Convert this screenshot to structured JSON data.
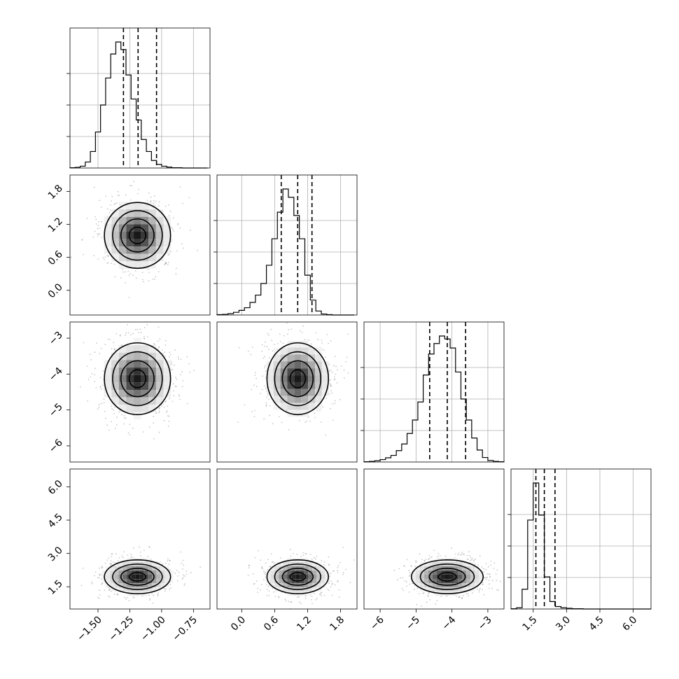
{
  "chart_data": {
    "type": "corner",
    "parameters": 4,
    "grid": true,
    "colors": {
      "line": "#000000",
      "grid": "#b0b0b0",
      "points": "#9a9a9a"
    },
    "quantiles": [
      0.16,
      0.5,
      0.84
    ],
    "axes": [
      {
        "range": [
          -1.72,
          -0.62
        ],
        "ticks": [
          -1.5,
          -1.25,
          -1.0,
          -0.75
        ],
        "tick_labels": [
          "−1.50",
          "−1.25",
          "−1.00",
          "−0.75"
        ]
      },
      {
        "range": [
          -0.45,
          2.1
        ],
        "ticks": [
          0.0,
          0.6,
          1.2,
          1.8
        ],
        "tick_labels": [
          "0.0",
          "0.6",
          "1.2",
          "1.8"
        ]
      },
      {
        "range": [
          -6.45,
          -2.55
        ],
        "ticks": [
          -6,
          -5,
          -4,
          -3
        ],
        "tick_labels": [
          "−6",
          "−5",
          "−4",
          "−3"
        ]
      },
      {
        "range": [
          0.5,
          6.8
        ],
        "ticks": [
          1.5,
          3.0,
          4.5,
          6.0
        ],
        "tick_labels": [
          "1.5",
          "3.0",
          "4.5",
          "6.0"
        ]
      }
    ],
    "marginals": [
      {
        "param": 0,
        "quantile_values": [
          -1.3,
          -1.185,
          -1.04
        ],
        "bins_x": [
          -1.72,
          -1.68,
          -1.64,
          -1.6,
          -1.56,
          -1.52,
          -1.48,
          -1.44,
          -1.4,
          -1.36,
          -1.32,
          -1.28,
          -1.24,
          -1.2,
          -1.16,
          -1.12,
          -1.08,
          -1.04,
          -1.0,
          -0.96,
          -0.92,
          -0.88,
          -0.84,
          -0.8,
          -0.76,
          -0.72,
          -0.68,
          -0.64
        ],
        "counts": [
          1,
          2,
          6,
          20,
          55,
          120,
          210,
          300,
          380,
          420,
          395,
          310,
          230,
          160,
          95,
          55,
          25,
          12,
          6,
          3,
          1,
          1,
          0,
          0,
          0,
          0,
          0
        ]
      },
      {
        "param": 1,
        "quantile_values": [
          0.72,
          1.02,
          1.28
        ],
        "bins_x": [
          -0.45,
          -0.35,
          -0.25,
          -0.15,
          -0.05,
          0.05,
          0.15,
          0.25,
          0.35,
          0.45,
          0.55,
          0.65,
          0.75,
          0.85,
          0.95,
          1.05,
          1.15,
          1.25,
          1.35,
          1.45,
          1.55,
          1.65,
          1.75,
          1.85,
          1.95,
          2.05
        ],
        "counts": [
          1,
          2,
          4,
          8,
          14,
          22,
          38,
          60,
          95,
          150,
          230,
          310,
          380,
          355,
          300,
          230,
          120,
          45,
          12,
          3,
          1,
          0,
          0,
          0,
          0
        ]
      },
      {
        "param": 2,
        "quantile_values": [
          -4.62,
          -4.13,
          -3.62
        ],
        "bins_x": [
          -6.45,
          -6.3,
          -6.15,
          -6.0,
          -5.85,
          -5.7,
          -5.55,
          -5.4,
          -5.25,
          -5.1,
          -4.95,
          -4.8,
          -4.65,
          -4.5,
          -4.35,
          -4.2,
          -4.05,
          -3.9,
          -3.75,
          -3.6,
          -3.45,
          -3.3,
          -3.15,
          -3.0,
          -2.85,
          -2.7,
          -2.55
        ],
        "counts": [
          1,
          2,
          4,
          8,
          14,
          22,
          38,
          60,
          95,
          140,
          200,
          290,
          360,
          395,
          420,
          410,
          380,
          300,
          210,
          140,
          80,
          40,
          15,
          5,
          2,
          1
        ]
      },
      {
        "param": 3,
        "quantile_values": [
          1.62,
          2.0,
          2.48
        ],
        "bins_x": [
          0.5,
          0.75,
          1.0,
          1.25,
          1.5,
          1.75,
          2.0,
          2.25,
          2.5,
          2.75,
          3.0,
          3.25,
          3.5,
          3.75,
          4.0,
          4.25,
          4.5,
          4.75,
          5.0,
          5.25,
          5.5,
          5.75,
          6.0,
          6.25,
          6.5,
          6.8
        ],
        "counts": [
          1,
          5,
          80,
          360,
          510,
          380,
          130,
          30,
          10,
          5,
          3,
          1,
          1,
          0,
          0,
          0,
          0,
          0,
          0,
          0,
          0,
          0,
          0,
          0,
          0
        ]
      }
    ],
    "pairs": [
      {
        "x": 0,
        "y": 1,
        "center": [
          -1.19,
          1.0
        ],
        "spread": [
          0.13,
          0.3
        ],
        "contour_sigma": [
          0.5,
          1.0,
          1.5,
          2.0
        ]
      },
      {
        "x": 0,
        "y": 2,
        "center": [
          -1.19,
          -4.13
        ],
        "spread": [
          0.13,
          0.5
        ],
        "contour_sigma": [
          0.5,
          1.0,
          1.5,
          2.0
        ]
      },
      {
        "x": 1,
        "y": 2,
        "center": [
          1.02,
          -4.13
        ],
        "spread": [
          0.28,
          0.5
        ],
        "contour_sigma": [
          0.5,
          1.0,
          1.5,
          2.0
        ]
      },
      {
        "x": 0,
        "y": 3,
        "center": [
          -1.19,
          1.95
        ],
        "spread": [
          0.13,
          0.38
        ],
        "contour_sigma": [
          0.5,
          1.0,
          1.5,
          2.0
        ]
      },
      {
        "x": 1,
        "y": 3,
        "center": [
          1.02,
          1.95
        ],
        "spread": [
          0.28,
          0.38
        ],
        "contour_sigma": [
          0.5,
          1.0,
          1.5,
          2.0
        ]
      },
      {
        "x": 2,
        "y": 3,
        "center": [
          -4.13,
          1.95
        ],
        "spread": [
          0.5,
          0.38
        ],
        "contour_sigma": [
          0.5,
          1.0,
          1.5,
          2.0
        ]
      }
    ]
  }
}
